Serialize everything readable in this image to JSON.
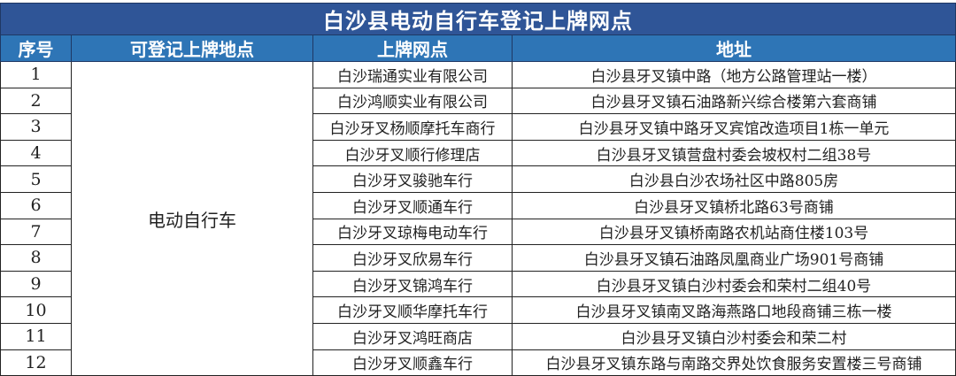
{
  "title": "白沙县电动自行车登记上牌网点",
  "headers": [
    "序号",
    "可登记上牌地点",
    "上牌网点",
    "地址"
  ],
  "location": "电动自行车",
  "rows": [
    {
      "no": "1",
      "site": "白沙瑞通实业有限公司",
      "address": "白沙县牙叉镇中路（地方公路管理站一楼）"
    },
    {
      "no": "2",
      "site": "白沙鸿顺实业有限公司",
      "address": "白沙县牙叉镇石油路新兴综合楼第六套商铺"
    },
    {
      "no": "3",
      "site": "白沙牙叉杨顺摩托车商行",
      "address": "白沙县牙叉镇中路牙叉宾馆改造项目1栋一单元"
    },
    {
      "no": "4",
      "site": "白沙牙叉顺行修理店",
      "address": "白沙县牙叉镇营盘村委会坡权村二组38号"
    },
    {
      "no": "5",
      "site": "白沙牙叉骏驰车行",
      "address": "白沙县白沙农场社区中路805房"
    },
    {
      "no": "6",
      "site": "白沙牙叉顺通车行",
      "address": "白沙县牙叉镇桥北路63号商铺"
    },
    {
      "no": "7",
      "site": "白沙牙叉琼梅电动车行",
      "address": "白沙县牙叉镇桥南路农机站商住楼103号"
    },
    {
      "no": "8",
      "site": "白沙牙叉欣易车行",
      "address": "白沙县牙叉镇石油路凤凰商业广场901号商铺"
    },
    {
      "no": "9",
      "site": "白沙牙叉锦鸿车行",
      "address": "白沙县牙叉镇白沙村委会和荣村二组40号"
    },
    {
      "no": "10",
      "site": "白沙牙叉顺华摩托车行",
      "address": "白沙县牙叉镇南叉路海燕路口地段商铺三栋一楼"
    },
    {
      "no": "11",
      "site": "白沙牙叉鸿旺商店",
      "address": "白沙县牙叉镇白沙村委会和荣二村"
    },
    {
      "no": "12",
      "site": "白沙牙叉顺鑫车行",
      "address": "白沙县牙叉镇东路与南路交界处饮食服务安置楼三号商铺"
    }
  ],
  "colors": {
    "title_bg": "#2f5597",
    "header_bg": "#2e75b6"
  }
}
